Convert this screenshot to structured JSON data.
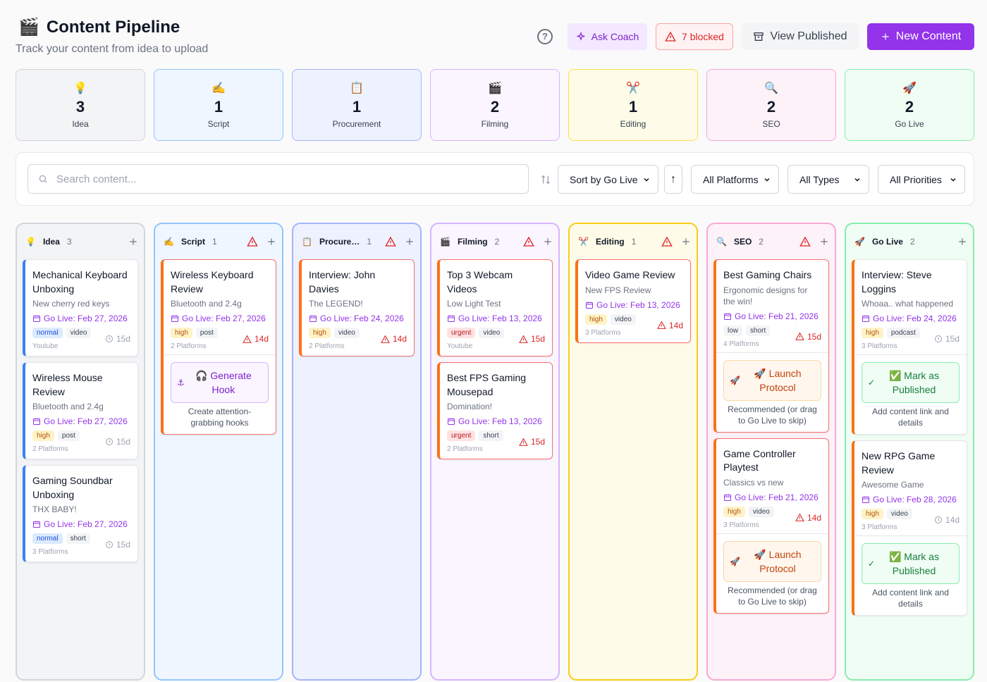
{
  "header": {
    "icon": "🎬",
    "title": "Content Pipeline",
    "subtitle": "Track your content from idea to upload",
    "ask_coach": "Ask Coach",
    "blocked": "7 blocked",
    "view_published": "View Published",
    "new_content": "New Content"
  },
  "stats": [
    {
      "icon": "💡",
      "count": 3,
      "label": "Idea"
    },
    {
      "icon": "✍️",
      "count": 1,
      "label": "Script"
    },
    {
      "icon": "📋",
      "count": 1,
      "label": "Procurement"
    },
    {
      "icon": "🎬",
      "count": 2,
      "label": "Filming"
    },
    {
      "icon": "✂️",
      "count": 1,
      "label": "Editing"
    },
    {
      "icon": "🔍",
      "count": 2,
      "label": "SEO"
    },
    {
      "icon": "🚀",
      "count": 2,
      "label": "Go Live"
    }
  ],
  "toolbar": {
    "search_placeholder": "Search content...",
    "sort": "Sort by Go Live",
    "platforms": "All Platforms",
    "types": "All Types",
    "priorities": "All Priorities"
  },
  "columns": [
    {
      "icon": "💡",
      "name": "Idea",
      "count": 3,
      "cards": [
        {
          "title": "Mechanical Keyboard Unboxing",
          "subtitle": "New cherry red keys",
          "go_live": "Go Live: Feb 27, 2026",
          "tags": [
            {
              "label": "normal",
              "color": "#dbeafe"
            },
            {
              "label": "video",
              "color": "#f3f4f6"
            }
          ],
          "platforms": "Youtube",
          "days": "15d"
        },
        {
          "title": "Wireless Mouse Review",
          "subtitle": "Bluetooth and 2.4g",
          "go_live": "Go Live: Feb 27, 2026",
          "tags": [
            {
              "label": "high",
              "color": "#fef3c7"
            },
            {
              "label": "post",
              "color": "#f3f4f6"
            }
          ],
          "platforms": "2 Platforms",
          "days": "15d"
        },
        {
          "title": "Gaming Soundbar Unboxing",
          "subtitle": "THX BABY!",
          "go_live": "Go Live: Feb 27, 2026",
          "tags": [
            {
              "label": "normal",
              "color": "#dbeafe"
            },
            {
              "label": "short",
              "color": "#f3f4f6"
            }
          ],
          "platforms": "3 Platforms",
          "days": "15d"
        }
      ]
    },
    {
      "icon": "✍️",
      "name": "Script",
      "count": 1,
      "cards": [
        {
          "title": "Wireless Keyboard Review",
          "subtitle": "Bluetooth and 2.4g",
          "go_live": "Go Live: Feb 27, 2026",
          "tags": [
            {
              "label": "high",
              "color": "#fef3c7"
            },
            {
              "label": "post",
              "color": "#f3f4f6"
            }
          ],
          "platforms": "2 Platforms",
          "days": "14d",
          "action": {
            "label": "🎧 Generate Hook",
            "note": "Create attention-grabbing hooks"
          }
        }
      ]
    },
    {
      "icon": "📋",
      "name": "Procure…",
      "count": 1,
      "cards": [
        {
          "title": "Interview: John Davies",
          "subtitle": "The LEGEND!",
          "go_live": "Go Live: Feb 24, 2026",
          "tags": [
            {
              "label": "high",
              "color": "#fef3c7"
            },
            {
              "label": "video",
              "color": "#f3f4f6"
            }
          ],
          "platforms": "2 Platforms",
          "days": "14d"
        }
      ]
    },
    {
      "icon": "🎬",
      "name": "Filming",
      "count": 2,
      "cards": [
        {
          "title": "Top 3 Webcam Videos",
          "subtitle": "Low Light Test",
          "go_live": "Go Live: Feb 13, 2026",
          "tags": [
            {
              "label": "urgent",
              "color": "#fee2e2"
            },
            {
              "label": "video",
              "color": "#f3f4f6"
            }
          ],
          "platforms": "Youtube",
          "days": "15d"
        },
        {
          "title": "Best FPS Gaming Mousepad",
          "subtitle": "Domination!",
          "go_live": "Go Live: Feb 13, 2026",
          "tags": [
            {
              "label": "urgent",
              "color": "#fee2e2"
            },
            {
              "label": "short",
              "color": "#f3f4f6"
            }
          ],
          "platforms": "2 Platforms",
          "days": "15d"
        }
      ]
    },
    {
      "icon": "✂️",
      "name": "Editing",
      "count": 1,
      "cards": [
        {
          "title": "Video Game Review",
          "subtitle": "New FPS Review",
          "go_live": "Go Live: Feb 13, 2026",
          "tags": [
            {
              "label": "high",
              "color": "#fef3c7"
            },
            {
              "label": "video",
              "color": "#f3f4f6"
            }
          ],
          "platforms": "3 Platforms",
          "days": "14d"
        }
      ]
    },
    {
      "icon": "🔍",
      "name": "SEO",
      "count": 2,
      "cards": [
        {
          "title": "Best Gaming Chairs",
          "subtitle": "Ergonomic designs for the win!",
          "go_live": "Go Live: Feb 21, 2026",
          "tags": [
            {
              "label": "low",
              "color": "#f3f4f6"
            },
            {
              "label": "short",
              "color": "#f3f4f6"
            }
          ],
          "platforms": "4 Platforms",
          "days": "15d",
          "action": {
            "label": "🚀 Launch Protocol",
            "note": "Recommended (or drag to Go Live to skip)"
          }
        },
        {
          "title": "Game Controller Playtest",
          "subtitle": "Classics vs new",
          "go_live": "Go Live: Feb 21, 2026",
          "tags": [
            {
              "label": "high",
              "color": "#fef3c7"
            },
            {
              "label": "video",
              "color": "#f3f4f6"
            }
          ],
          "platforms": "3 Platforms",
          "days": "14d",
          "action": {
            "label": "🚀 Launch Protocol",
            "note": "Recommended (or drag to Go Live to skip)"
          }
        }
      ]
    },
    {
      "icon": "🚀",
      "name": "Go Live",
      "count": 2,
      "cards": [
        {
          "title": "Interview: Steve Loggins",
          "subtitle": "Whoaa.. what happened",
          "go_live": "Go Live: Feb 24, 2026",
          "tags": [
            {
              "label": "high",
              "color": "#fef3c7"
            },
            {
              "label": "podcast",
              "color": "#f3f4f6"
            }
          ],
          "platforms": "3 Platforms",
          "days": "15d",
          "action": {
            "label": "✅ Mark as Published",
            "note": "Add content link and details"
          }
        },
        {
          "title": "New RPG Game Review",
          "subtitle": "Awesome Game",
          "go_live": "Go Live: Feb 28, 2026",
          "tags": [
            {
              "label": "high",
              "color": "#fef3c7"
            },
            {
              "label": "video",
              "color": "#f3f4f6"
            }
          ],
          "platforms": "3 Platforms",
          "days": "14d",
          "action": {
            "label": "✅ Mark as Published",
            "note": "Add content link and details"
          }
        }
      ]
    }
  ]
}
